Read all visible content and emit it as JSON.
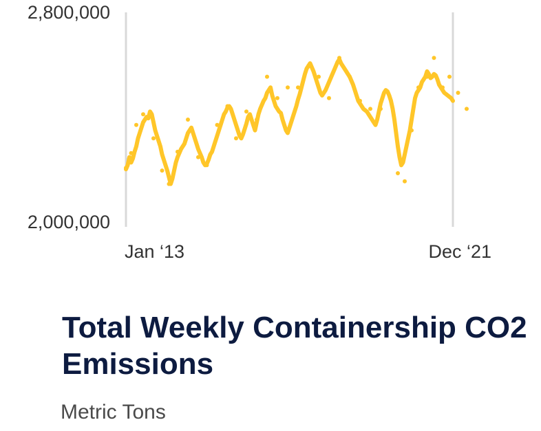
{
  "chart_data": {
    "type": "line",
    "title": "Total Weekly Containership CO2 Emissions",
    "subtitle": "Metric Tons",
    "ylim": [
      2000000,
      2800000
    ],
    "ytick_labels": [
      "2,800,000",
      "2,000,000"
    ],
    "x_start_label": "Jan ‘13",
    "x_end_label": "Dec ‘21",
    "line_color": "#ffc629",
    "axis_color": "#d9d9d9",
    "grid": false,
    "series": [
      {
        "values": [
          2215000,
          2230000,
          2260000,
          2240000,
          2255000,
          2280000,
          2300000,
          2330000,
          2350000,
          2370000,
          2390000,
          2400000,
          2410000,
          2405000,
          2430000,
          2420000,
          2390000,
          2360000,
          2340000,
          2320000,
          2300000,
          2270000,
          2250000,
          2230000,
          2210000,
          2185000,
          2160000,
          2180000,
          2210000,
          2240000,
          2260000,
          2275000,
          2290000,
          2300000,
          2310000,
          2330000,
          2350000,
          2360000,
          2370000,
          2350000,
          2330000,
          2310000,
          2290000,
          2275000,
          2260000,
          2240000,
          2230000,
          2235000,
          2250000,
          2270000,
          2280000,
          2300000,
          2320000,
          2340000,
          2360000,
          2380000,
          2400000,
          2420000,
          2430000,
          2445000,
          2450000,
          2440000,
          2420000,
          2400000,
          2380000,
          2360000,
          2340000,
          2330000,
          2345000,
          2365000,
          2385000,
          2410000,
          2420000,
          2400000,
          2380000,
          2360000,
          2390000,
          2420000,
          2440000,
          2455000,
          2470000,
          2480000,
          2500000,
          2510000,
          2520000,
          2490000,
          2470000,
          2450000,
          2440000,
          2430000,
          2425000,
          2400000,
          2380000,
          2360000,
          2350000,
          2370000,
          2390000,
          2410000,
          2430000,
          2450000,
          2475000,
          2495000,
          2520000,
          2545000,
          2570000,
          2590000,
          2600000,
          2610000,
          2595000,
          2580000,
          2560000,
          2540000,
          2520000,
          2500000,
          2490000,
          2500000,
          2510000,
          2525000,
          2540000,
          2555000,
          2570000,
          2585000,
          2600000,
          2615000,
          2625000,
          2610000,
          2600000,
          2590000,
          2580000,
          2570000,
          2560000,
          2545000,
          2530000,
          2510000,
          2490000,
          2470000,
          2460000,
          2450000,
          2440000,
          2435000,
          2430000,
          2420000,
          2410000,
          2400000,
          2390000,
          2380000,
          2400000,
          2430000,
          2460000,
          2480000,
          2500000,
          2510000,
          2505000,
          2490000,
          2470000,
          2440000,
          2400000,
          2350000,
          2300000,
          2260000,
          2230000,
          2240000,
          2270000,
          2300000,
          2330000,
          2360000,
          2400000,
          2440000,
          2480000,
          2500000,
          2510000,
          2520000,
          2540000,
          2550000,
          2560000,
          2580000,
          2570000,
          2555000,
          2560000,
          2570000,
          2565000,
          2550000,
          2530000,
          2520000,
          2510000,
          2500000,
          2495000,
          2490000,
          2485000,
          2480000,
          2470000
        ],
        "highlight_points": [
          [
            0,
            2220000
          ],
          [
            3,
            2275000
          ],
          [
            6,
            2380000
          ],
          [
            10,
            2420000
          ],
          [
            16,
            2330000
          ],
          [
            21,
            2210000
          ],
          [
            25,
            2160000
          ],
          [
            30,
            2280000
          ],
          [
            36,
            2400000
          ],
          [
            42,
            2260000
          ],
          [
            47,
            2230000
          ],
          [
            53,
            2380000
          ],
          [
            59,
            2450000
          ],
          [
            64,
            2330000
          ],
          [
            70,
            2430000
          ],
          [
            76,
            2400000
          ],
          [
            82,
            2560000
          ],
          [
            88,
            2480000
          ],
          [
            94,
            2520000
          ],
          [
            100,
            2520000
          ],
          [
            106,
            2600000
          ],
          [
            112,
            2560000
          ],
          [
            118,
            2480000
          ],
          [
            124,
            2630000
          ],
          [
            130,
            2560000
          ],
          [
            136,
            2470000
          ],
          [
            142,
            2440000
          ],
          [
            148,
            2440000
          ],
          [
            154,
            2470000
          ],
          [
            158,
            2200000
          ],
          [
            162,
            2170000
          ],
          [
            166,
            2360000
          ],
          [
            170,
            2520000
          ],
          [
            175,
            2560000
          ],
          [
            179,
            2630000
          ],
          [
            184,
            2520000
          ],
          [
            188,
            2560000
          ],
          [
            193,
            2500000
          ],
          [
            198,
            2440000
          ]
        ]
      }
    ]
  }
}
